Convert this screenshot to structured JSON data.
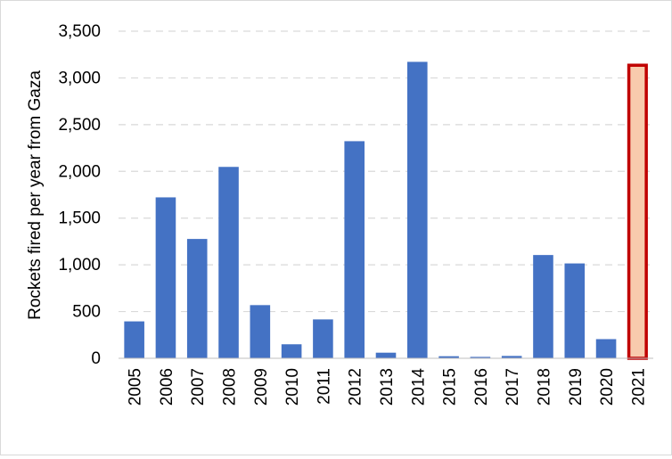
{
  "chart_data": {
    "type": "bar",
    "title": "",
    "xlabel": "",
    "ylabel": "Rockets fired per year from Gaza",
    "ylim": [
      0,
      3500
    ],
    "yticks": [
      0,
      500,
      1000,
      1500,
      2000,
      2500,
      3000,
      3500
    ],
    "ytick_labels": [
      "0",
      "500",
      "1,000",
      "1,500",
      "2,000",
      "2,500",
      "3,000",
      "3,500"
    ],
    "grid": "horizontal dashed",
    "legend": "none",
    "categories": [
      "2005",
      "2006",
      "2007",
      "2008",
      "2009",
      "2010",
      "2011",
      "2012",
      "2013",
      "2014",
      "2015",
      "2016",
      "2017",
      "2018",
      "2019",
      "2020",
      "2021"
    ],
    "values": [
      395,
      1722,
      1277,
      2048,
      569,
      150,
      416,
      2323,
      60,
      3172,
      22,
      15,
      25,
      1105,
      1015,
      205,
      3150
    ],
    "highlighted_category": "2021",
    "colors": {
      "bar": "#4472C4",
      "highlight_fill": "#F8CBAD",
      "highlight_stroke": "#C00000",
      "grid": "#D9D9D9"
    }
  }
}
